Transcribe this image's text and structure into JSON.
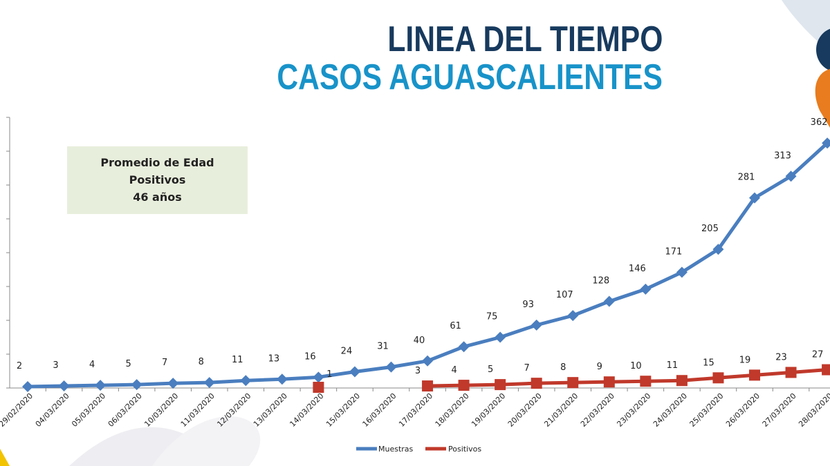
{
  "header": {
    "title_line1": "LINEA DEL TIEMPO",
    "title_line2": "CASOS AGUASCALIENTES"
  },
  "info_box": {
    "line1": "Promedio de Edad",
    "line2": "Positivos",
    "line3": "46 años"
  },
  "colors": {
    "title_dark": "#173a5e",
    "title_light": "#1893c9",
    "muestras": "#4a7ebf",
    "positivos": "#c0392b",
    "info_box_bg": "#e8eedc"
  },
  "chart_data": {
    "type": "line",
    "categories": [
      "29/02/2020",
      "04/03/2020",
      "05/03/2020",
      "06/03/2020",
      "10/03/2020",
      "11/03/2020",
      "12/03/2020",
      "13/03/2020",
      "14/03/2020",
      "15/03/2020",
      "16/03/2020",
      "17/03/2020",
      "18/03/2020",
      "19/03/2020",
      "20/03/2020",
      "21/03/2020",
      "22/03/2020",
      "23/03/2020",
      "24/03/2020",
      "25/03/2020",
      "26/03/2020",
      "27/03/2020",
      "28/03/2020"
    ],
    "series": [
      {
        "name": "Muestras",
        "color": "#4a7ebf",
        "marker": "diamond",
        "values": [
          2,
          3,
          4,
          5,
          7,
          8,
          11,
          13,
          16,
          24,
          31,
          40,
          61,
          75,
          93,
          107,
          128,
          146,
          171,
          205,
          281,
          313,
          362
        ]
      },
      {
        "name": "Positivos",
        "color": "#c0392b",
        "marker": "square",
        "values": [
          null,
          null,
          null,
          null,
          null,
          null,
          null,
          null,
          1,
          null,
          null,
          3,
          4,
          5,
          7,
          8,
          9,
          10,
          11,
          15,
          19,
          23,
          27
        ]
      }
    ],
    "ylim": [
      0,
      400
    ],
    "y_tick_step": 50,
    "data_labels": true,
    "grid": false,
    "legend": "bottom"
  }
}
